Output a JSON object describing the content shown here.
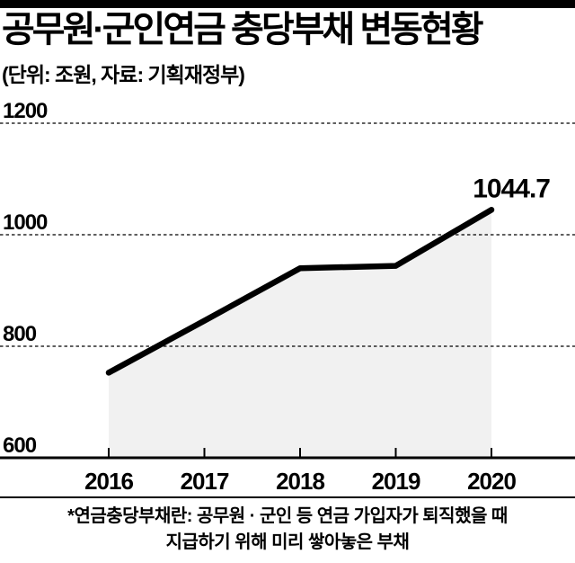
{
  "header": {
    "title": "공무원·군인연금 충당부채 변동현황",
    "subtitle": "(단위: 조원, 자료: 기획재정부)"
  },
  "chart_data": {
    "type": "area",
    "title": "공무원·군인연금 충당부채 변동현황",
    "unit_label": "단위: 조원",
    "source_label": "자료: 기획재정부",
    "x": [
      "2016",
      "2017",
      "2018",
      "2019",
      "2020"
    ],
    "values": [
      752.6,
      845.8,
      939.9,
      944.2,
      1044.7
    ],
    "end_label": "1044.7",
    "ylim": [
      600,
      1200
    ],
    "yticks": [
      600,
      800,
      1000,
      1200
    ],
    "grid_dashed_at": [
      800,
      1000,
      1200
    ],
    "grid": "horizontal-dashed",
    "legend": "none",
    "line_color": "#000000",
    "area_fill": "#f1f1f1"
  },
  "footnote": {
    "line1": "*연금충당부채란: 공무원 · 군인 등 연금 가입자가 퇴직했을 때",
    "line2": "지급하기 위해 미리 쌓아놓은 부채"
  },
  "colors": {
    "ink": "#000000",
    "background": "#ffffff"
  }
}
